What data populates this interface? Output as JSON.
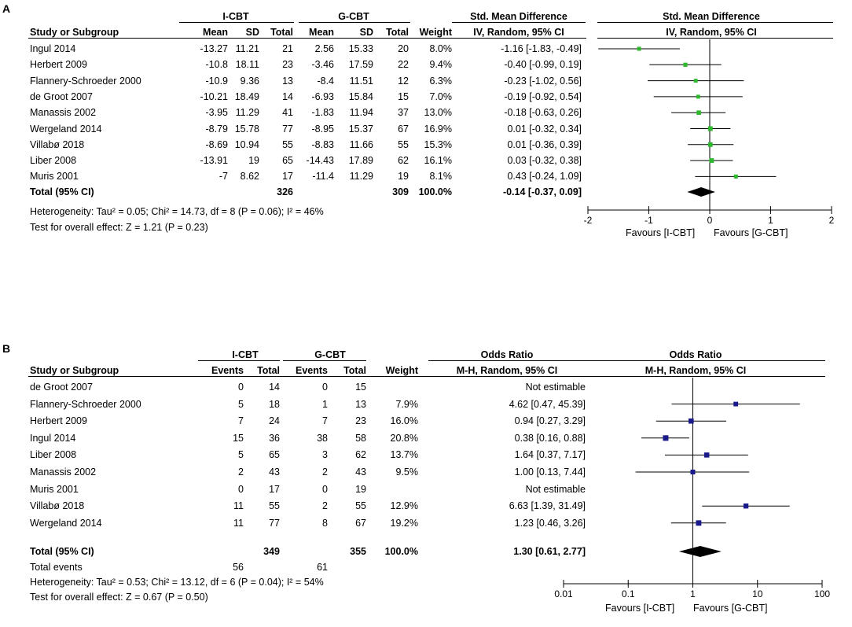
{
  "panels": [
    {
      "label": "A",
      "group1": "I-CBT",
      "group2": "G-CBT",
      "columns": [
        "Study or Subgroup",
        "Mean",
        "SD",
        "Total",
        "Mean",
        "SD",
        "Total",
        "Weight",
        "IV, Random, 95% CI"
      ],
      "effect_header": "Std. Mean Difference",
      "plot_header": "Std. Mean Difference",
      "plot_subheader": "IV, Random, 95% CI",
      "rows": [
        {
          "study": "Ingul 2014",
          "c": [
            "-13.27",
            "11.21",
            "21",
            "2.56",
            "15.33",
            "20",
            "8.0%",
            "-1.16 [-1.83, -0.49]"
          ]
        },
        {
          "study": "Herbert 2009",
          "c": [
            "-10.8",
            "18.11",
            "23",
            "-3.46",
            "17.59",
            "22",
            "9.4%",
            "-0.40 [-0.99, 0.19]"
          ]
        },
        {
          "study": "Flannery-Schroeder 2000",
          "c": [
            "-10.9",
            "9.36",
            "13",
            "-8.4",
            "11.51",
            "12",
            "6.3%",
            "-0.23 [-1.02, 0.56]"
          ]
        },
        {
          "study": "de Groot 2007",
          "c": [
            "-10.21",
            "18.49",
            "14",
            "-6.93",
            "15.84",
            "15",
            "7.0%",
            "-0.19 [-0.92, 0.54]"
          ]
        },
        {
          "study": "Manassis 2002",
          "c": [
            "-3.95",
            "11.29",
            "41",
            "-1.83",
            "11.94",
            "37",
            "13.0%",
            "-0.18 [-0.63, 0.26]"
          ]
        },
        {
          "study": "Wergeland 2014",
          "c": [
            "-8.79",
            "15.78",
            "77",
            "-8.95",
            "15.37",
            "67",
            "16.9%",
            "0.01 [-0.32, 0.34]"
          ]
        },
        {
          "study": "Villabø 2018",
          "c": [
            "-8.69",
            "10.94",
            "55",
            "-8.83",
            "11.66",
            "55",
            "15.3%",
            "0.01 [-0.36, 0.39]"
          ]
        },
        {
          "study": "Liber 2008",
          "c": [
            "-13.91",
            "19",
            "65",
            "-14.43",
            "17.89",
            "62",
            "16.1%",
            "0.03 [-0.32, 0.38]"
          ]
        },
        {
          "study": "Muris 2001",
          "c": [
            "-7",
            "8.62",
            "17",
            "-11.4",
            "11.29",
            "19",
            "8.1%",
            "0.43 [-0.24, 1.09]"
          ]
        }
      ],
      "total": {
        "label": "Total (95% CI)",
        "t1": "326",
        "t2": "309",
        "weight": "100.0%",
        "ci": "-0.14 [-0.37, 0.09]"
      },
      "footnotes": [
        "Heterogeneity: Tau² = 0.05; Chi² = 14.73, df = 8 (P = 0.06); I² = 46%",
        "Test for overall effect: Z = 1.21 (P = 0.23)"
      ],
      "axis_ticks": [
        "-2",
        "-1",
        "0",
        "1",
        "2"
      ],
      "favours_left": "Favours [I-CBT]",
      "favours_right": "Favours [G-CBT]"
    },
    {
      "label": "B",
      "group1": "I-CBT",
      "group2": "G-CBT",
      "columns": [
        "Study or Subgroup",
        "Events",
        "Total",
        "Events",
        "Total",
        "Weight",
        "M-H, Random, 95% CI"
      ],
      "effect_header": "Odds Ratio",
      "plot_header": "Odds Ratio",
      "plot_subheader": "M-H, Random, 95% CI",
      "rows": [
        {
          "study": "de Groot 2007",
          "c": [
            "0",
            "14",
            "0",
            "15",
            "",
            "Not estimable"
          ]
        },
        {
          "study": "Flannery-Schroeder 2000",
          "c": [
            "5",
            "18",
            "1",
            "13",
            "7.9%",
            "4.62 [0.47, 45.39]"
          ]
        },
        {
          "study": "Herbert 2009",
          "c": [
            "7",
            "24",
            "7",
            "23",
            "16.0%",
            "0.94 [0.27, 3.29]"
          ]
        },
        {
          "study": "Ingul 2014",
          "c": [
            "15",
            "36",
            "38",
            "58",
            "20.8%",
            "0.38 [0.16, 0.88]"
          ]
        },
        {
          "study": "Liber 2008",
          "c": [
            "5",
            "65",
            "3",
            "62",
            "13.7%",
            "1.64 [0.37, 7.17]"
          ]
        },
        {
          "study": "Manassis 2002",
          "c": [
            "2",
            "43",
            "2",
            "43",
            "9.5%",
            "1.00 [0.13, 7.44]"
          ]
        },
        {
          "study": "Muris 2001",
          "c": [
            "0",
            "17",
            "0",
            "19",
            "",
            "Not estimable"
          ]
        },
        {
          "study": "Villabø 2018",
          "c": [
            "11",
            "55",
            "2",
            "55",
            "12.9%",
            "6.63 [1.39, 31.49]"
          ]
        },
        {
          "study": "Wergeland 2014",
          "c": [
            "11",
            "77",
            "8",
            "67",
            "19.2%",
            "1.23 [0.46, 3.26]"
          ]
        }
      ],
      "total": {
        "label": "Total (95% CI)",
        "t1": "349",
        "t2": "355",
        "weight": "100.0%",
        "ci": "1.30 [0.61, 2.77]"
      },
      "total_events": {
        "label": "Total events",
        "e1": "56",
        "e2": "61"
      },
      "footnotes": [
        "Heterogeneity: Tau² = 0.53; Chi² = 13.12, df = 6 (P = 0.04); I² = 54%",
        "Test for overall effect: Z = 0.67 (P = 0.50)"
      ],
      "axis_ticks": [
        "0.01",
        "0.1",
        "1",
        "10",
        "100"
      ],
      "favours_left": "Favours [I-CBT]",
      "favours_right": "Favours [G-CBT]"
    }
  ],
  "chart_data": [
    {
      "type": "forest",
      "title": "Std. Mean Difference, IV, Random, 95% CI",
      "scale": "linear",
      "xlim": [
        -2,
        2
      ],
      "ticks": [
        -2,
        -1,
        0,
        1,
        2
      ],
      "marker_color": "#2eb82e",
      "studies": [
        {
          "name": "Ingul 2014",
          "est": -1.16,
          "lo": -1.83,
          "hi": -0.49,
          "weight": 8.0
        },
        {
          "name": "Herbert 2009",
          "est": -0.4,
          "lo": -0.99,
          "hi": 0.19,
          "weight": 9.4
        },
        {
          "name": "Flannery-Schroeder 2000",
          "est": -0.23,
          "lo": -1.02,
          "hi": 0.56,
          "weight": 6.3
        },
        {
          "name": "de Groot 2007",
          "est": -0.19,
          "lo": -0.92,
          "hi": 0.54,
          "weight": 7.0
        },
        {
          "name": "Manassis 2002",
          "est": -0.18,
          "lo": -0.63,
          "hi": 0.26,
          "weight": 13.0
        },
        {
          "name": "Wergeland 2014",
          "est": 0.01,
          "lo": -0.32,
          "hi": 0.34,
          "weight": 16.9
        },
        {
          "name": "Villabø 2018",
          "est": 0.01,
          "lo": -0.36,
          "hi": 0.39,
          "weight": 15.3
        },
        {
          "name": "Liber 2008",
          "est": 0.03,
          "lo": -0.32,
          "hi": 0.38,
          "weight": 16.1
        },
        {
          "name": "Muris 2001",
          "est": 0.43,
          "lo": -0.24,
          "hi": 1.09,
          "weight": 8.1
        }
      ],
      "pooled": {
        "est": -0.14,
        "lo": -0.37,
        "hi": 0.09
      }
    },
    {
      "type": "forest",
      "title": "Odds Ratio, M-H, Random, 95% CI",
      "scale": "log",
      "xlim": [
        0.01,
        100
      ],
      "ticks": [
        0.01,
        0.1,
        1,
        10,
        100
      ],
      "marker_color": "#1a1a8c",
      "studies": [
        {
          "name": "de Groot 2007",
          "est": null,
          "lo": null,
          "hi": null,
          "weight": 0
        },
        {
          "name": "Flannery-Schroeder 2000",
          "est": 4.62,
          "lo": 0.47,
          "hi": 45.39,
          "weight": 7.9
        },
        {
          "name": "Herbert 2009",
          "est": 0.94,
          "lo": 0.27,
          "hi": 3.29,
          "weight": 16.0
        },
        {
          "name": "Ingul 2014",
          "est": 0.38,
          "lo": 0.16,
          "hi": 0.88,
          "weight": 20.8
        },
        {
          "name": "Liber 2008",
          "est": 1.64,
          "lo": 0.37,
          "hi": 7.17,
          "weight": 13.7
        },
        {
          "name": "Manassis 2002",
          "est": 1.0,
          "lo": 0.13,
          "hi": 7.44,
          "weight": 9.5
        },
        {
          "name": "Muris 2001",
          "est": null,
          "lo": null,
          "hi": null,
          "weight": 0
        },
        {
          "name": "Villabø 2018",
          "est": 6.63,
          "lo": 1.39,
          "hi": 31.49,
          "weight": 12.9
        },
        {
          "name": "Wergeland 2014",
          "est": 1.23,
          "lo": 0.46,
          "hi": 3.26,
          "weight": 19.2
        }
      ],
      "pooled": {
        "est": 1.3,
        "lo": 0.61,
        "hi": 2.77
      }
    }
  ]
}
